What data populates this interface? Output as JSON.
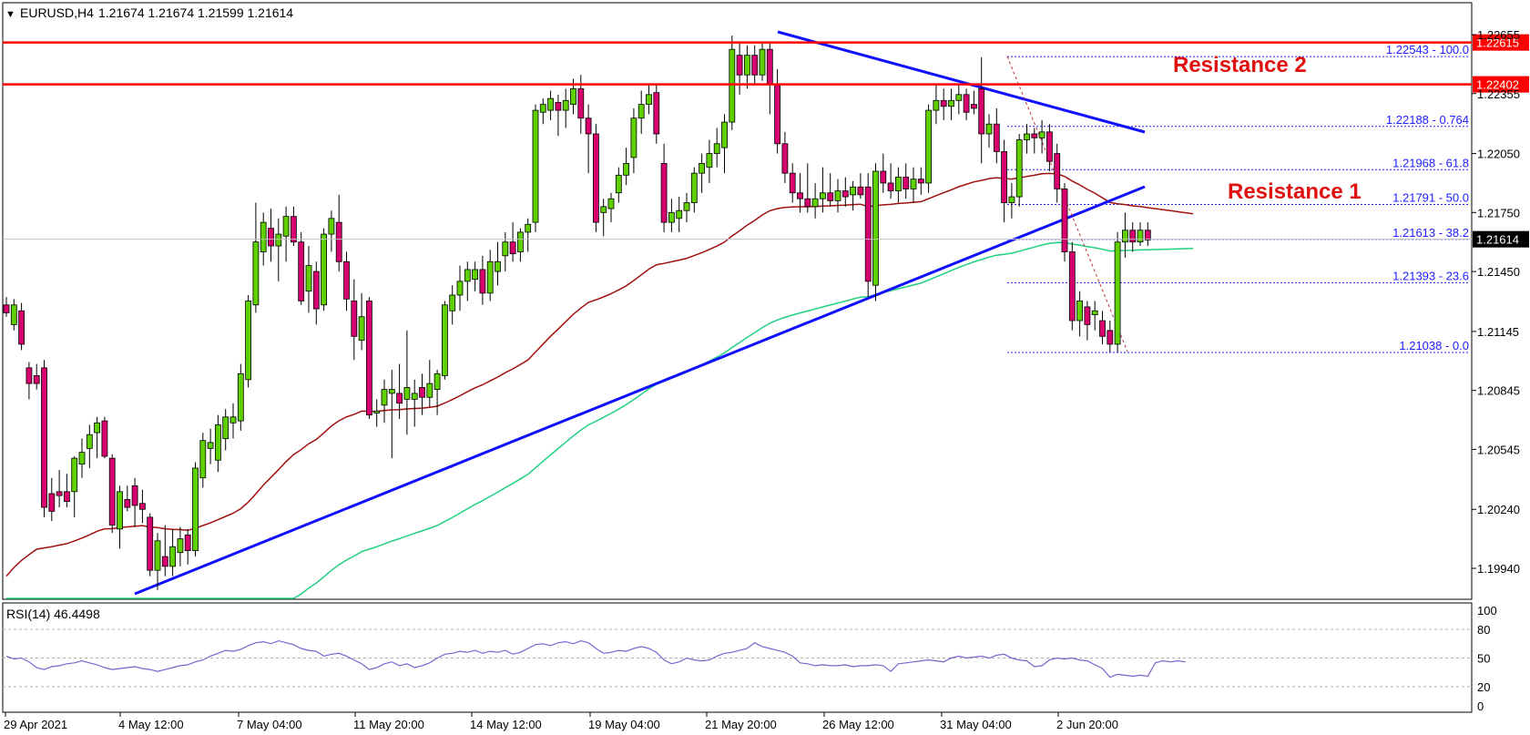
{
  "header": {
    "symbol_timeframe": "EURUSD,H4",
    "ohlc": "1.21674 1.21674 1.21599 1.21614",
    "menu_glyph": "▼"
  },
  "rsi_header": "RSI(14) 46.4498",
  "chart_data": [
    {
      "type": "candlestick",
      "symbol": "EURUSD",
      "timeframe": "H4",
      "ylim": [
        1.19765,
        1.22775
      ],
      "y_ticks": [
        "1.22655",
        "1.22355",
        "1.22050",
        "1.21750",
        "1.21450",
        "1.21145",
        "1.20845",
        "1.20545",
        "1.20240",
        "1.19940"
      ],
      "x_ticks": [
        "29 Apr 2021",
        "4 May 12:00",
        "7 May 04:00",
        "11 May 20:00",
        "14 May 12:00",
        "19 May 04:00",
        "21 May 20:00",
        "26 May 12:00",
        "31 May 04:00",
        "2 Jun 20:00"
      ],
      "last_price": 1.21614,
      "price_lines": [
        {
          "label": "Resistance 2",
          "value": 1.22402,
          "tag": "1.22402",
          "color": "#ff0000"
        },
        {
          "label": "",
          "value": 1.22615,
          "tag": "1.22615",
          "color": "#ff0000"
        }
      ],
      "annotations": [
        {
          "text": "Resistance 2",
          "color": "#e01010"
        },
        {
          "text": "Resistance 1",
          "color": "#e01010"
        }
      ],
      "fibonacci": [
        {
          "label": "1.22543 - 100.0",
          "value": 1.22543
        },
        {
          "label": "1.22188 - 0.764",
          "value": 1.22188
        },
        {
          "label": "1.21968 - 61.8",
          "value": 1.21968
        },
        {
          "label": "1.21791 - 50.0",
          "value": 1.21791
        },
        {
          "label": "1.21613 - 38.2",
          "value": 1.21613
        },
        {
          "label": "1.21393 - 23.6",
          "value": 1.21393
        },
        {
          "label": "1.21038 - 0.0",
          "value": 1.21038
        }
      ],
      "fib_color": "#2020ff",
      "up_color": "#5fd000",
      "down_color": "#d8006e",
      "ma_colors": {
        "ma100": "#a01010",
        "ma200": "#20d080"
      },
      "trendline_color": "#1010ff",
      "candles": [
        [
          1.2128,
          1.2132,
          1.2122,
          1.2124
        ],
        [
          1.2118,
          1.2131,
          1.2115,
          1.2128
        ],
        [
          1.2125,
          1.2129,
          1.2105,
          1.2108
        ],
        [
          1.2096,
          1.2099,
          1.208,
          1.2088
        ],
        [
          1.2092,
          1.2098,
          1.2085,
          1.2088
        ],
        [
          1.2096,
          1.21,
          1.202,
          1.2025
        ],
        [
          1.2032,
          1.204,
          1.2018,
          1.2023
        ],
        [
          1.2033,
          1.2044,
          1.2025,
          1.2031
        ],
        [
          1.2033,
          1.2042,
          1.2025,
          1.2028
        ],
        [
          1.2033,
          1.2051,
          1.202,
          1.205
        ],
        [
          1.2047,
          1.206,
          1.204,
          1.2053
        ],
        [
          1.2055,
          1.2067,
          1.2045,
          1.2062
        ],
        [
          1.2063,
          1.2071,
          1.205,
          1.2068
        ],
        [
          1.2069,
          1.2071,
          1.205,
          1.2051
        ],
        [
          1.205,
          1.2052,
          1.2012,
          1.2016
        ],
        [
          1.2014,
          1.2036,
          1.2004,
          1.2033
        ],
        [
          1.2029,
          1.2036,
          1.2023,
          1.2025
        ],
        [
          1.2036,
          1.204,
          1.2015,
          1.2026
        ],
        [
          1.2027,
          1.2034,
          1.2017,
          1.2024
        ],
        [
          1.202,
          1.2022,
          1.199,
          1.1993
        ],
        [
          1.1993,
          1.2012,
          1.1983,
          1.2008
        ],
        [
          1.2,
          1.2016,
          1.199,
          1.1995
        ],
        [
          1.1995,
          1.2014,
          1.199,
          1.2005
        ],
        [
          1.2002,
          1.2015,
          1.1995,
          1.2009
        ],
        [
          1.2011,
          1.2014,
          1.1996,
          1.2003
        ],
        [
          1.2003,
          1.2048,
          1.2,
          1.2045
        ],
        [
          1.204,
          1.2063,
          1.2035,
          1.2059
        ],
        [
          1.2055,
          1.2065,
          1.2047,
          1.2058
        ],
        [
          1.2049,
          1.2072,
          1.2043,
          1.2067
        ],
        [
          1.206,
          1.2075,
          1.2054,
          1.2071
        ],
        [
          1.2068,
          1.2078,
          1.206,
          1.2071
        ],
        [
          1.2069,
          1.2098,
          1.2064,
          1.2093
        ],
        [
          1.209,
          1.2133,
          1.2086,
          1.213
        ],
        [
          1.2128,
          1.218,
          1.2124,
          1.216
        ],
        [
          1.2155,
          1.2175,
          1.2148,
          1.217
        ],
        [
          1.2167,
          1.2177,
          1.215,
          1.2158
        ],
        [
          1.2158,
          1.2172,
          1.214,
          1.2164
        ],
        [
          1.2163,
          1.2178,
          1.215,
          1.2173
        ],
        [
          1.2173,
          1.2178,
          1.2158,
          1.216
        ],
        [
          1.216,
          1.2165,
          1.2128,
          1.213
        ],
        [
          1.2135,
          1.2158,
          1.2124,
          1.2148
        ],
        [
          1.2145,
          1.215,
          1.2118,
          1.2126
        ],
        [
          1.2128,
          1.2167,
          1.2125,
          1.2164
        ],
        [
          1.2164,
          1.2176,
          1.2155,
          1.2172
        ],
        [
          1.217,
          1.2184,
          1.2145,
          1.215
        ],
        [
          1.215,
          1.2155,
          1.2125,
          1.2131
        ],
        [
          1.213,
          1.2141,
          1.21,
          1.2112
        ],
        [
          1.211,
          1.2134,
          1.2105,
          1.2122
        ],
        [
          1.213,
          1.2132,
          1.207,
          1.2072
        ],
        [
          1.2073,
          1.208,
          1.2066,
          1.2074
        ],
        [
          1.2077,
          1.209,
          1.2068,
          1.2085
        ],
        [
          1.2083,
          1.2095,
          1.205,
          1.2085
        ],
        [
          1.2083,
          1.2098,
          1.207,
          1.2078
        ],
        [
          1.208,
          1.2115,
          1.2062,
          1.2086
        ],
        [
          1.208,
          1.209,
          1.2066,
          1.2083
        ],
        [
          1.2086,
          1.2093,
          1.2072,
          1.2081
        ],
        [
          1.2081,
          1.21,
          1.2076,
          1.2088
        ],
        [
          1.2085,
          1.2095,
          1.2072,
          1.2093
        ],
        [
          1.2092,
          1.213,
          1.209,
          1.2128
        ],
        [
          1.2125,
          1.2138,
          1.2118,
          1.2133
        ],
        [
          1.2133,
          1.2148,
          1.2125,
          1.214
        ],
        [
          1.214,
          1.215,
          1.213,
          1.2146
        ],
        [
          1.2141,
          1.215,
          1.2135,
          1.2146
        ],
        [
          1.2146,
          1.2153,
          1.2128,
          1.2134
        ],
        [
          1.2134,
          1.2156,
          1.213,
          1.215
        ],
        [
          1.2145,
          1.216,
          1.2138,
          1.215
        ],
        [
          1.2153,
          1.2165,
          1.2145,
          1.216
        ],
        [
          1.216,
          1.217,
          1.215,
          1.2154
        ],
        [
          1.2155,
          1.2167,
          1.215,
          1.2165
        ],
        [
          1.2165,
          1.2172,
          1.2155,
          1.2169
        ],
        [
          1.217,
          1.223,
          1.2165,
          1.2227
        ],
        [
          1.2226,
          1.2233,
          1.222,
          1.223
        ],
        [
          1.2227,
          1.2237,
          1.2222,
          1.2233
        ],
        [
          1.2231,
          1.2235,
          1.2214,
          1.2227
        ],
        [
          1.2227,
          1.2238,
          1.2218,
          1.2232
        ],
        [
          1.223,
          1.2243,
          1.2225,
          1.2238
        ],
        [
          1.2238,
          1.2245,
          1.2215,
          1.2223
        ],
        [
          1.2223,
          1.223,
          1.2195,
          1.2215
        ],
        [
          1.2215,
          1.222,
          1.2165,
          1.217
        ],
        [
          1.2175,
          1.2182,
          1.2163,
          1.2178
        ],
        [
          1.2177,
          1.2185,
          1.217,
          1.2182
        ],
        [
          1.2185,
          1.2198,
          1.218,
          1.2194
        ],
        [
          1.2194,
          1.2208,
          1.2189,
          1.22
        ],
        [
          1.2203,
          1.2228,
          1.2195,
          1.2223
        ],
        [
          1.2223,
          1.2237,
          1.2215,
          1.223
        ],
        [
          1.223,
          1.224,
          1.2225,
          1.2235
        ],
        [
          1.2236,
          1.224,
          1.221,
          1.2215
        ],
        [
          1.22,
          1.221,
          1.2165,
          1.217
        ],
        [
          1.217,
          1.2182,
          1.2165,
          1.2175
        ],
        [
          1.2172,
          1.2183,
          1.2165,
          1.2176
        ],
        [
          1.2176,
          1.2185,
          1.217,
          1.218
        ],
        [
          1.218,
          1.2198,
          1.2175,
          1.2195
        ],
        [
          1.2195,
          1.2205,
          1.2185,
          1.22
        ],
        [
          1.2198,
          1.2212,
          1.219,
          1.2205
        ],
        [
          1.2205,
          1.2218,
          1.2198,
          1.221
        ],
        [
          1.2208,
          1.2225,
          1.2195,
          1.2221
        ],
        [
          1.2221,
          1.2265,
          1.2217,
          1.2258
        ],
        [
          1.2255,
          1.2262,
          1.2235,
          1.2245
        ],
        [
          1.2245,
          1.226,
          1.2238,
          1.2255
        ],
        [
          1.2255,
          1.226,
          1.224,
          1.2245
        ],
        [
          1.2245,
          1.2261,
          1.2242,
          1.2258
        ],
        [
          1.2258,
          1.2262,
          1.2225,
          1.224
        ],
        [
          1.224,
          1.2248,
          1.2205,
          1.221
        ],
        [
          1.221,
          1.2216,
          1.219,
          1.2195
        ],
        [
          1.2195,
          1.22,
          1.218,
          1.2185
        ],
        [
          1.2185,
          1.2195,
          1.2175,
          1.2182
        ],
        [
          1.2182,
          1.22,
          1.2175,
          1.2178
        ],
        [
          1.2178,
          1.219,
          1.2172,
          1.2182
        ],
        [
          1.2182,
          1.2198,
          1.2175,
          1.2185
        ],
        [
          1.2185,
          1.2195,
          1.2178,
          1.2181
        ],
        [
          1.2181,
          1.2192,
          1.2175,
          1.2186
        ],
        [
          1.2186,
          1.2193,
          1.2178,
          1.2183
        ],
        [
          1.2184,
          1.2191,
          1.2176,
          1.2188
        ],
        [
          1.2188,
          1.2195,
          1.2182,
          1.2184
        ],
        [
          1.2188,
          1.2195,
          1.2132,
          1.214
        ],
        [
          1.2138,
          1.22,
          1.213,
          1.2196
        ],
        [
          1.2196,
          1.2205,
          1.2185,
          1.219
        ],
        [
          1.219,
          1.22,
          1.2182,
          1.2186
        ],
        [
          1.2186,
          1.2198,
          1.218,
          1.2193
        ],
        [
          1.2193,
          1.22,
          1.2182,
          1.2187
        ],
        [
          1.2187,
          1.2198,
          1.218,
          1.2192
        ],
        [
          1.2192,
          1.2198,
          1.2184,
          1.219
        ],
        [
          1.219,
          1.223,
          1.2185,
          1.2227
        ],
        [
          1.2227,
          1.224,
          1.222,
          1.2232
        ],
        [
          1.2232,
          1.2238,
          1.2222,
          1.2229
        ],
        [
          1.2229,
          1.2238,
          1.2222,
          1.2232
        ],
        [
          1.2232,
          1.224,
          1.2225,
          1.2235
        ],
        [
          1.2235,
          1.2238,
          1.2222,
          1.2226
        ],
        [
          1.223,
          1.2237,
          1.2225,
          1.2228
        ],
        [
          1.2238,
          1.2254,
          1.22,
          1.2215
        ],
        [
          1.2215,
          1.2225,
          1.2208,
          1.222
        ],
        [
          1.222,
          1.2228,
          1.22,
          1.2206
        ],
        [
          1.2206,
          1.2212,
          1.217,
          1.218
        ],
        [
          1.218,
          1.219,
          1.2172,
          1.2183
        ],
        [
          1.2183,
          1.2215,
          1.2178,
          1.2212
        ],
        [
          1.2212,
          1.222,
          1.2205,
          1.2215
        ],
        [
          1.2215,
          1.2218,
          1.2205,
          1.2213
        ],
        [
          1.2213,
          1.2222,
          1.2205,
          1.2216
        ],
        [
          1.2216,
          1.222,
          1.2196,
          1.2201
        ],
        [
          1.2205,
          1.221,
          1.218,
          1.2187
        ],
        [
          1.2187,
          1.219,
          1.215,
          1.2155
        ],
        [
          1.2155,
          1.216,
          1.2115,
          1.212
        ],
        [
          1.212,
          1.2135,
          1.2112,
          1.213
        ],
        [
          1.2127,
          1.213,
          1.211,
          1.2118
        ],
        [
          1.2123,
          1.213,
          1.2115,
          1.2125
        ],
        [
          1.212,
          1.2125,
          1.2108,
          1.2112
        ],
        [
          1.2115,
          1.212,
          1.2104,
          1.2108
        ],
        [
          1.2108,
          1.2165,
          1.2104,
          1.216
        ],
        [
          1.216,
          1.2175,
          1.2152,
          1.2166
        ],
        [
          1.2166,
          1.217,
          1.2155,
          1.216
        ],
        [
          1.216,
          1.217,
          1.2158,
          1.2166
        ],
        [
          1.2166,
          1.217,
          1.2158,
          1.2161
        ]
      ]
    },
    {
      "type": "line",
      "title": "RSI(14) 46.4498",
      "ylim": [
        0,
        100
      ],
      "y_ticks": [
        "100",
        "80",
        "50",
        "20",
        "0"
      ],
      "levels": [
        20,
        50,
        80
      ],
      "color": "#8060d0",
      "values": [
        52,
        49,
        50,
        46,
        40,
        38,
        41,
        42,
        44,
        45,
        47,
        45,
        43,
        40,
        38,
        39,
        40,
        41,
        39,
        38,
        36,
        38,
        40,
        42,
        43,
        46,
        48,
        52,
        55,
        58,
        57,
        59,
        63,
        66,
        67,
        65,
        68,
        66,
        64,
        60,
        58,
        57,
        52,
        54,
        55,
        52,
        48,
        44,
        38,
        40,
        44,
        46,
        42,
        44,
        40,
        42,
        45,
        50,
        54,
        55,
        57,
        56,
        58,
        55,
        57,
        56,
        58,
        54,
        56,
        60,
        64,
        65,
        63,
        66,
        67,
        65,
        68,
        66,
        60,
        55,
        56,
        58,
        57,
        60,
        62,
        60,
        56,
        48,
        44,
        46,
        50,
        48,
        47,
        48,
        52,
        55,
        56,
        58,
        60,
        66,
        62,
        60,
        58,
        56,
        52,
        45,
        44,
        42,
        43,
        42,
        42,
        43,
        41,
        42,
        42,
        43,
        42,
        36,
        44,
        45,
        46,
        47,
        48,
        47,
        46,
        50,
        52,
        50,
        51,
        52,
        50,
        53,
        54,
        50,
        48,
        47,
        41,
        42,
        48,
        50,
        49,
        50,
        48,
        47,
        43,
        39,
        30,
        33,
        32,
        31,
        32,
        31,
        45,
        47,
        46,
        47,
        46
      ]
    }
  ]
}
